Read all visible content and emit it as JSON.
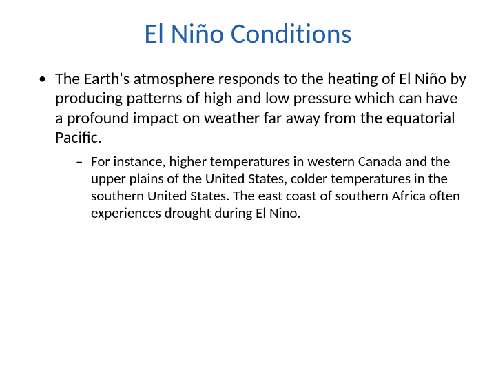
{
  "title": {
    "text": "El Niño Conditions",
    "color": "#1f5ea8",
    "fontsize": 40
  },
  "body": {
    "color": "#000000",
    "level1_fontsize": 24,
    "level2_fontsize": 21,
    "bullets": [
      {
        "text": "The Earth's atmosphere responds to the heating of El Niño by producing patterns of high and low pressure which can have a profound impact on weather far away from the equatorial Pacific.",
        "sub": [
          "For instance, higher temperatures in western Canada and the upper plains of the United States, colder temperatures in the southern United States. The east coast of southern Africa often experiences drought during El Nino."
        ]
      }
    ]
  },
  "background_color": "#ffffff"
}
